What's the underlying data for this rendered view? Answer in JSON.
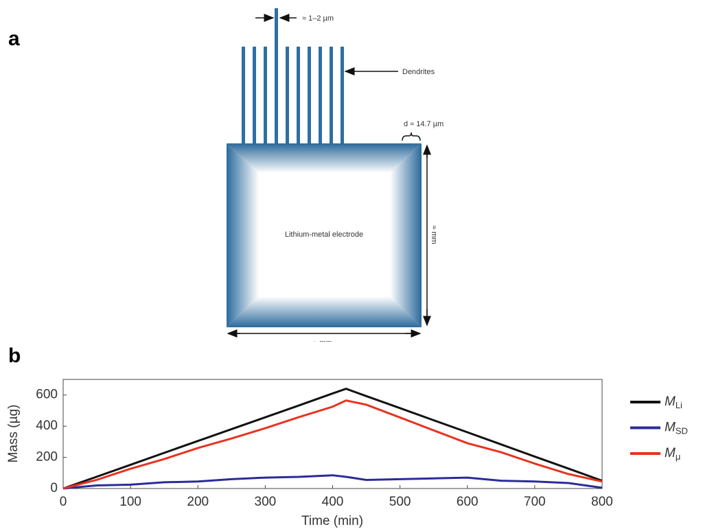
{
  "panel_a": {
    "label": "a",
    "width_label": "≈ 1–2 µm",
    "dendrites_label": "Dendrites",
    "thickness_label": "d ≈ 14.7 µm",
    "electrode_label": "Lithium-metal electrode",
    "height_label": "≈ mm",
    "length_label": "≈ mm"
  },
  "panel_b_label": "b",
  "chart_data": {
    "type": "line",
    "xlabel": "Time (min)",
    "ylabel": "Mass (µg)",
    "x": [
      0,
      50,
      100,
      150,
      200,
      250,
      300,
      350,
      400,
      420,
      450,
      500,
      550,
      600,
      650,
      700,
      750,
      800
    ],
    "series": [
      {
        "name": "M",
        "subscript": "Li",
        "color": "#111111",
        "values": [
          0,
          76,
          152,
          229,
          305,
          381,
          457,
          533,
          610,
          640,
          593,
          516,
          438,
          361,
          283,
          205,
          128,
          50
        ]
      },
      {
        "name": "M",
        "subscript": "SD",
        "color": "#2b2b9c",
        "values": [
          0,
          20,
          25,
          40,
          45,
          60,
          70,
          75,
          85,
          75,
          55,
          60,
          65,
          70,
          50,
          45,
          35,
          5
        ]
      },
      {
        "name": "M",
        "subscript": "μ",
        "color": "#e8321f",
        "values": [
          0,
          56,
          127,
          189,
          260,
          321,
          387,
          458,
          525,
          565,
          538,
          456,
          373,
          291,
          233,
          160,
          93,
          45
        ]
      }
    ],
    "xlim": [
      0,
      800
    ],
    "xticks": [
      0,
      100,
      200,
      300,
      400,
      500,
      600,
      700,
      800
    ],
    "ylim": [
      0,
      700
    ],
    "yticks": [
      0,
      200,
      400,
      600
    ],
    "grid": false
  }
}
